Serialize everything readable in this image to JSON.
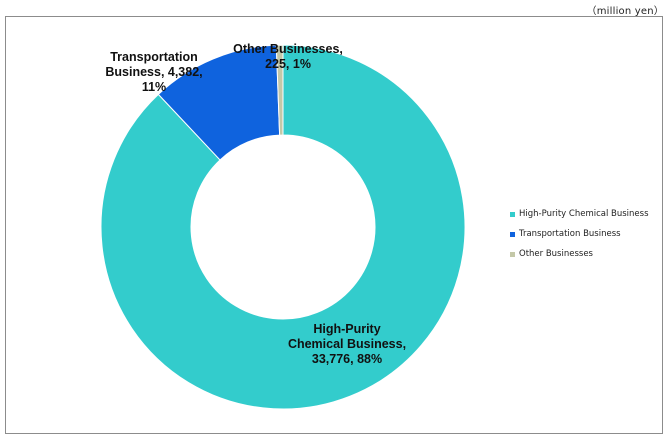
{
  "unit_note": "（million yen）",
  "colors": {
    "high_purity": "#33CCCC",
    "transportation": "#0F63DE",
    "other": "#C4C8A8"
  },
  "chart_data": {
    "type": "pie",
    "donut": true,
    "title": "",
    "legend_position": "right",
    "slices": [
      {
        "name": "High-Purity Chemical Business",
        "value": 33776,
        "percent": 88,
        "color": "#33CCCC",
        "label_lines": [
          "High-Purity",
          "Chemical Business,",
          "33,776, 88%"
        ]
      },
      {
        "name": "Transportation Business",
        "value": 4382,
        "percent": 11,
        "color": "#0F63DE",
        "label_lines": [
          "Transportation",
          "Business, 4,382,",
          "11%"
        ]
      },
      {
        "name": "Other Businesses",
        "value": 225,
        "percent": 1,
        "color": "#C4C8A8",
        "label_lines": [
          "Other Businesses,",
          "225, 1%"
        ]
      }
    ]
  }
}
